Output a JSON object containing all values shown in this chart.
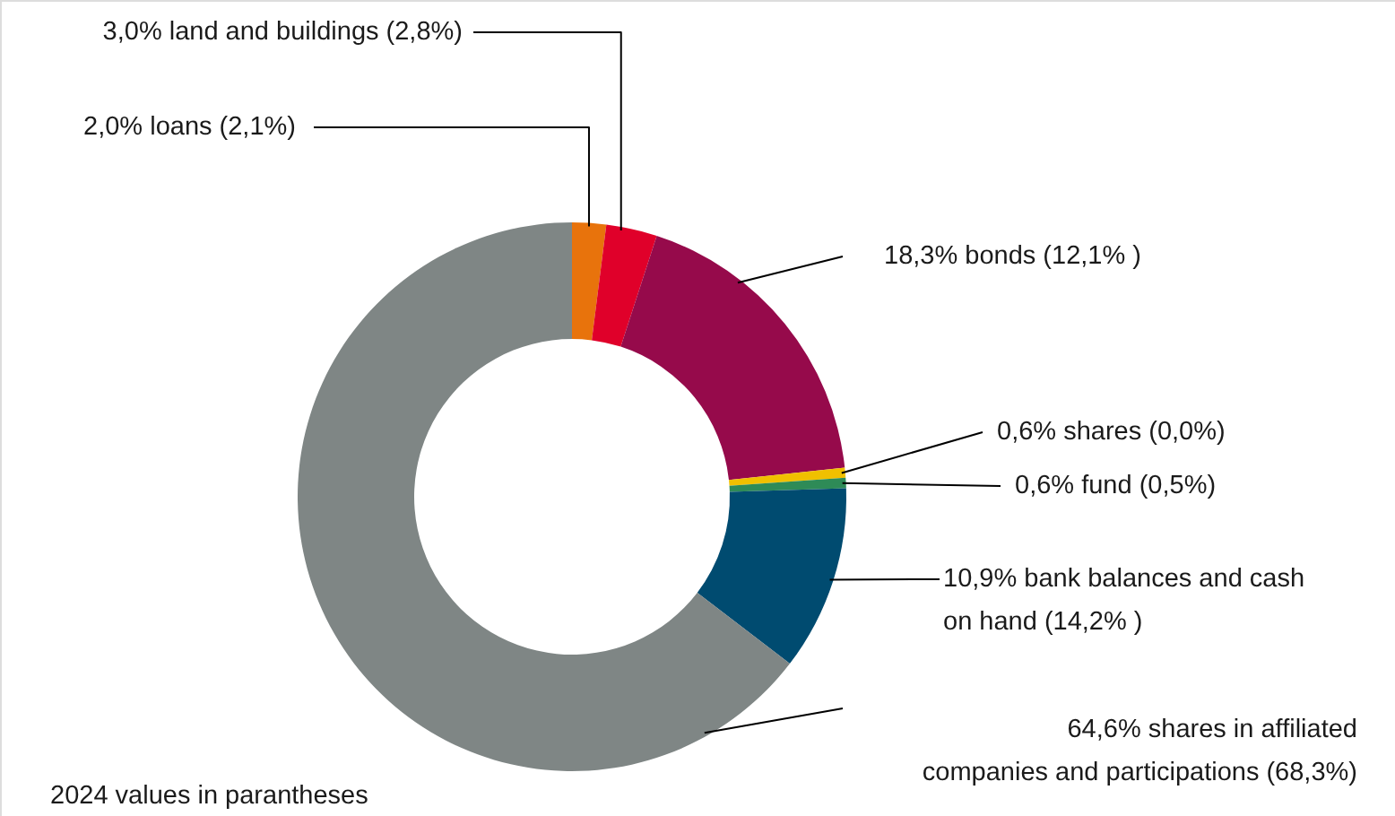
{
  "chart_data": {
    "type": "donut",
    "categories": [
      "2,0% loans (2,1%)",
      "3,0% land and buildings (2,8%)",
      "18,3% bonds (12,1% )",
      "0,6% shares (0,0%)",
      "0,6% fund (0,5%)",
      "10,9% bank balances and cash\non hand (14,2% )",
      "64,6% shares in affiliated\ncompanies and participations (68,3%)"
    ],
    "values": [
      2.0,
      3.0,
      18.3,
      0.6,
      0.6,
      10.9,
      64.6
    ],
    "colors": [
      "#e8730c",
      "#e0002a",
      "#960a4b",
      "#f0c000",
      "#2e8b57",
      "#004b70",
      "#7f8685"
    ],
    "annotations": [
      "2024 values in parantheses"
    ]
  }
}
